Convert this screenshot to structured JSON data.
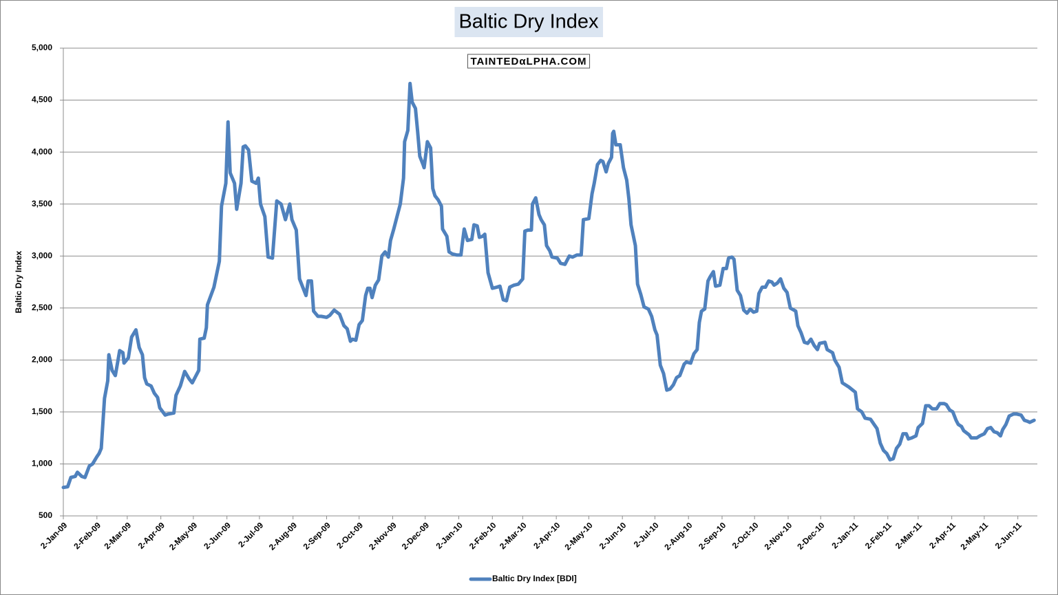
{
  "chart_data": {
    "type": "line",
    "title": "Baltic Dry Index",
    "watermark": "TAINTEDαLPHA.COM",
    "y_label": "Baltic Dry Index",
    "grid": true,
    "legend": "bottom",
    "xlim": [
      "2009-01-02",
      "2011-06-20"
    ],
    "ylim": [
      500,
      5000
    ],
    "yticks": [
      500,
      {
        "value": 1000,
        "label": "1,000"
      },
      {
        "value": 1500,
        "label": "1,500"
      },
      {
        "value": 2000,
        "label": "2,000"
      },
      {
        "value": 2500,
        "label": "2,500"
      },
      {
        "value": 3000,
        "label": "3,000"
      },
      {
        "value": 3500,
        "label": "3,500"
      },
      {
        "value": 4000,
        "label": "4,000"
      },
      {
        "value": 4500,
        "label": "4,500"
      },
      {
        "value": 5000,
        "label": "5,000"
      }
    ],
    "xticks": [
      {
        "value": "2009-01-02",
        "label": "2-Jan-09"
      },
      {
        "value": "2009-02-02",
        "label": "2-Feb-09"
      },
      {
        "value": "2009-03-02",
        "label": "2-Mar-09"
      },
      {
        "value": "2009-04-02",
        "label": "2-Apr-09"
      },
      {
        "value": "2009-05-02",
        "label": "2-May-09"
      },
      {
        "value": "2009-06-02",
        "label": "2-Jun-09"
      },
      {
        "value": "2009-07-02",
        "label": "2-Jul-09"
      },
      {
        "value": "2009-08-02",
        "label": "2-Aug-09"
      },
      {
        "value": "2009-09-02",
        "label": "2-Sep-09"
      },
      {
        "value": "2009-10-02",
        "label": "2-Oct-09"
      },
      {
        "value": "2009-11-02",
        "label": "2-Nov-09"
      },
      {
        "value": "2009-12-02",
        "label": "2-Dec-09"
      },
      {
        "value": "2010-01-02",
        "label": "2-Jan-10"
      },
      {
        "value": "2010-02-02",
        "label": "2-Feb-10"
      },
      {
        "value": "2010-03-02",
        "label": "2-Mar-10"
      },
      {
        "value": "2010-04-02",
        "label": "2-Apr-10"
      },
      {
        "value": "2010-05-02",
        "label": "2-May-10"
      },
      {
        "value": "2010-06-02",
        "label": "2-Jun-10"
      },
      {
        "value": "2010-07-02",
        "label": "2-Jul-10"
      },
      {
        "value": "2010-08-02",
        "label": "2-Aug-10"
      },
      {
        "value": "2010-09-02",
        "label": "2-Sep-10"
      },
      {
        "value": "2010-10-02",
        "label": "2-Oct-10"
      },
      {
        "value": "2010-11-02",
        "label": "2-Nov-10"
      },
      {
        "value": "2010-12-02",
        "label": "2-Dec-10"
      },
      {
        "value": "2011-01-02",
        "label": "2-Jan-11"
      },
      {
        "value": "2011-02-02",
        "label": "2-Feb-11"
      },
      {
        "value": "2011-03-02",
        "label": "2-Mar-11"
      },
      {
        "value": "2011-04-02",
        "label": "2-Apr-11"
      },
      {
        "value": "2011-05-02",
        "label": "2-May-11"
      },
      {
        "value": "2011-06-02",
        "label": "2-Jun-11"
      }
    ],
    "x": [
      "2009-01-02",
      "2009-01-06",
      "2009-01-09",
      "2009-01-13",
      "2009-01-15",
      "2009-01-19",
      "2009-01-22",
      "2009-01-26",
      "2009-01-29",
      "2009-02-02",
      "2009-02-04",
      "2009-02-06",
      "2009-02-09",
      "2009-02-12",
      "2009-02-13",
      "2009-02-16",
      "2009-02-19",
      "2009-02-23",
      "2009-02-26",
      "2009-02-27",
      "2009-03-03",
      "2009-03-06",
      "2009-03-10",
      "2009-03-13",
      "2009-03-16",
      "2009-03-18",
      "2009-03-20",
      "2009-03-24",
      "2009-03-27",
      "2009-03-30",
      "2009-04-01",
      "2009-04-06",
      "2009-04-09",
      "2009-04-14",
      "2009-04-16",
      "2009-04-20",
      "2009-04-24",
      "2009-04-28",
      "2009-05-01",
      "2009-05-04",
      "2009-05-07",
      "2009-05-08",
      "2009-05-12",
      "2009-05-14",
      "2009-05-15",
      "2009-05-21",
      "2009-05-26",
      "2009-05-28",
      "2009-06-01",
      "2009-06-03",
      "2009-06-05",
      "2009-06-09",
      "2009-06-11",
      "2009-06-15",
      "2009-06-17",
      "2009-06-19",
      "2009-06-22",
      "2009-06-25",
      "2009-06-29",
      "2009-07-01",
      "2009-07-03",
      "2009-07-07",
      "2009-07-10",
      "2009-07-14",
      "2009-07-18",
      "2009-07-22",
      "2009-07-26",
      "2009-07-30",
      "2009-08-01",
      "2009-08-05",
      "2009-08-08",
      "2009-08-11",
      "2009-08-14",
      "2009-08-16",
      "2009-08-19",
      "2009-08-21",
      "2009-08-25",
      "2009-08-28",
      "2009-09-02",
      "2009-09-05",
      "2009-09-09",
      "2009-09-14",
      "2009-09-18",
      "2009-09-21",
      "2009-09-24",
      "2009-09-26",
      "2009-09-29",
      "2009-10-02",
      "2009-10-05",
      "2009-10-08",
      "2009-10-10",
      "2009-10-12",
      "2009-10-14",
      "2009-10-17",
      "2009-10-20",
      "2009-10-23",
      "2009-10-26",
      "2009-10-29",
      "2009-10-31",
      "2009-11-03",
      "2009-11-06",
      "2009-11-09",
      "2009-11-12",
      "2009-11-13",
      "2009-11-16",
      "2009-11-18",
      "2009-11-20",
      "2009-11-23",
      "2009-11-25",
      "2009-11-27",
      "2009-11-30",
      "2009-12-01",
      "2009-12-04",
      "2009-12-07",
      "2009-12-09",
      "2009-12-11",
      "2009-12-14",
      "2009-12-17",
      "2009-12-18",
      "2009-12-22",
      "2009-12-24",
      "2009-12-27",
      "2009-12-31",
      "2010-01-04",
      "2010-01-05",
      "2010-01-07",
      "2010-01-10",
      "2010-01-14",
      "2010-01-16",
      "2010-01-19",
      "2010-01-21",
      "2010-01-24",
      "2010-01-26",
      "2010-01-29",
      "2010-02-02",
      "2010-02-06",
      "2010-02-09",
      "2010-02-12",
      "2010-02-15",
      "2010-02-18",
      "2010-02-22",
      "2010-02-26",
      "2010-03-02",
      "2010-03-04",
      "2010-03-07",
      "2010-03-10",
      "2010-03-11",
      "2010-03-14",
      "2010-03-17",
      "2010-03-19",
      "2010-03-22",
      "2010-03-24",
      "2010-03-27",
      "2010-03-29",
      "2010-04-03",
      "2010-04-06",
      "2010-04-10",
      "2010-04-14",
      "2010-04-17",
      "2010-04-21",
      "2010-04-25",
      "2010-04-27",
      "2010-05-02",
      "2010-05-05",
      "2010-05-07",
      "2010-05-10",
      "2010-05-13",
      "2010-05-15",
      "2010-05-18",
      "2010-05-20",
      "2010-05-23",
      "2010-05-24",
      "2010-05-25",
      "2010-05-27",
      "2010-05-31",
      "2010-06-03",
      "2010-06-06",
      "2010-06-08",
      "2010-06-10",
      "2010-06-14",
      "2010-06-16",
      "2010-06-19",
      "2010-06-22",
      "2010-06-26",
      "2010-06-29",
      "2010-07-02",
      "2010-07-04",
      "2010-07-07",
      "2010-07-10",
      "2010-07-13",
      "2010-07-16",
      "2010-07-19",
      "2010-07-22",
      "2010-07-25",
      "2010-07-29",
      "2010-07-31",
      "2010-08-04",
      "2010-08-07",
      "2010-08-10",
      "2010-08-12",
      "2010-08-14",
      "2010-08-17",
      "2010-08-20",
      "2010-08-22",
      "2010-08-25",
      "2010-08-27",
      "2010-08-31",
      "2010-09-03",
      "2010-09-06",
      "2010-09-08",
      "2010-09-11",
      "2010-09-13",
      "2010-09-16",
      "2010-09-19",
      "2010-09-22",
      "2010-09-25",
      "2010-09-28",
      "2010-10-01",
      "2010-10-04",
      "2010-10-06",
      "2010-10-09",
      "2010-10-12",
      "2010-10-15",
      "2010-10-18",
      "2010-10-20",
      "2010-10-23",
      "2010-10-26",
      "2010-10-29",
      "2010-11-01",
      "2010-11-04",
      "2010-11-09",
      "2010-11-11",
      "2010-11-14",
      "2010-11-17",
      "2010-11-20",
      "2010-11-23",
      "2010-11-26",
      "2010-11-29",
      "2010-12-01",
      "2010-12-06",
      "2010-12-08",
      "2010-12-13",
      "2010-12-15",
      "2010-12-19",
      "2010-12-22",
      "2010-12-28",
      "2011-01-03",
      "2011-01-05",
      "2011-01-09",
      "2011-01-12",
      "2011-01-17",
      "2011-01-21",
      "2011-01-23",
      "2011-01-26",
      "2011-01-29",
      "2011-02-01",
      "2011-02-04",
      "2011-02-07",
      "2011-02-10",
      "2011-02-13",
      "2011-02-16",
      "2011-02-19",
      "2011-02-21",
      "2011-02-24",
      "2011-02-28",
      "2011-03-02",
      "2011-03-06",
      "2011-03-09",
      "2011-03-12",
      "2011-03-15",
      "2011-03-19",
      "2011-03-22",
      "2011-03-26",
      "2011-03-28",
      "2011-03-31",
      "2011-04-03",
      "2011-04-06",
      "2011-04-08",
      "2011-04-11",
      "2011-04-13",
      "2011-04-18",
      "2011-04-20",
      "2011-04-25",
      "2011-04-28",
      "2011-05-02",
      "2011-05-05",
      "2011-05-08",
      "2011-05-11",
      "2011-05-14",
      "2011-05-17",
      "2011-05-19",
      "2011-05-22",
      "2011-05-25",
      "2011-05-29",
      "2011-06-01",
      "2011-06-05",
      "2011-06-08",
      "2011-06-11",
      "2011-06-13",
      "2011-06-17"
    ],
    "series": [
      {
        "name": "Baltic Dry Index [BDI]",
        "color": "#4f81bd",
        "values": [
          774,
          780,
          870,
          880,
          920,
          880,
          870,
          980,
          1000,
          1070,
          1100,
          1150,
          1630,
          1800,
          2050,
          1900,
          1850,
          2090,
          2070,
          1970,
          2020,
          2220,
          2290,
          2120,
          2050,
          1830,
          1770,
          1750,
          1680,
          1640,
          1540,
          1470,
          1480,
          1490,
          1660,
          1750,
          1890,
          1820,
          1780,
          1840,
          1900,
          2200,
          2210,
          2310,
          2530,
          2700,
          2950,
          3480,
          3700,
          4290,
          3800,
          3700,
          3450,
          3700,
          4050,
          4060,
          4020,
          3720,
          3700,
          3750,
          3500,
          3380,
          2990,
          2980,
          3530,
          3500,
          3350,
          3500,
          3350,
          3250,
          2780,
          2700,
          2620,
          2760,
          2760,
          2470,
          2420,
          2420,
          2410,
          2430,
          2480,
          2440,
          2330,
          2300,
          2180,
          2200,
          2190,
          2340,
          2380,
          2620,
          2690,
          2690,
          2600,
          2720,
          2770,
          3000,
          3040,
          2990,
          3150,
          3260,
          3380,
          3500,
          3750,
          4100,
          4210,
          4660,
          4480,
          4420,
          4200,
          3960,
          3880,
          3850,
          4100,
          4040,
          3650,
          3580,
          3540,
          3480,
          3260,
          3190,
          3040,
          3020,
          3010,
          3010,
          3100,
          3260,
          3150,
          3160,
          3300,
          3290,
          3180,
          3190,
          3210,
          2840,
          2690,
          2700,
          2710,
          2580,
          2570,
          2700,
          2720,
          2730,
          2780,
          3240,
          3250,
          3250,
          3500,
          3560,
          3400,
          3350,
          3300,
          3100,
          3050,
          2990,
          2980,
          2930,
          2920,
          3000,
          2990,
          3010,
          3010,
          3350,
          3360,
          3600,
          3700,
          3880,
          3920,
          3910,
          3810,
          3890,
          3950,
          4180,
          4200,
          4070,
          4070,
          3850,
          3730,
          3550,
          3300,
          3100,
          2730,
          2630,
          2510,
          2490,
          2420,
          2290,
          2240,
          1950,
          1870,
          1710,
          1720,
          1760,
          1830,
          1850,
          1960,
          1980,
          1970,
          2060,
          2100,
          2360,
          2470,
          2490,
          2760,
          2800,
          2850,
          2710,
          2720,
          2880,
          2880,
          2980,
          2990,
          2970,
          2670,
          2620,
          2480,
          2450,
          2490,
          2460,
          2470,
          2640,
          2700,
          2700,
          2760,
          2750,
          2720,
          2740,
          2780,
          2690,
          2650,
          2500,
          2470,
          2330,
          2260,
          2170,
          2160,
          2200,
          2140,
          2100,
          2160,
          2170,
          2100,
          2070,
          2000,
          1930,
          1780,
          1740,
          1690,
          1530,
          1500,
          1440,
          1430,
          1370,
          1340,
          1200,
          1130,
          1100,
          1040,
          1050,
          1150,
          1190,
          1290,
          1290,
          1240,
          1250,
          1270,
          1350,
          1390,
          1560,
          1560,
          1530,
          1530,
          1580,
          1580,
          1570,
          1520,
          1500,
          1420,
          1380,
          1360,
          1320,
          1280,
          1250,
          1250,
          1270,
          1290,
          1340,
          1350,
          1310,
          1300,
          1270,
          1330,
          1380,
          1460,
          1480,
          1480,
          1470,
          1420,
          1410,
          1400,
          1420
        ]
      }
    ]
  }
}
